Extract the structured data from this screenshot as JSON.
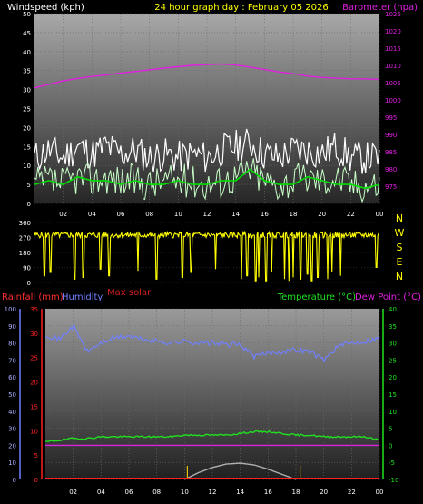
{
  "header": {
    "left_title": "Windspeed (kph)",
    "center_title": "24 hour graph day : February 05 2026",
    "right_title": "Barometer (hpa)"
  },
  "colors": {
    "gust": "#ffffff",
    "wind": "#c8ffc8",
    "wind_avg": "#00e000",
    "barometer": "#e020e0",
    "direction": "#ffff00",
    "humidity": "#7080ff",
    "temperature": "#20e020",
    "dew_point": "#e020e0",
    "solar": "#b0b0b0",
    "rain": "#ff2020",
    "max_solar": "#d02020",
    "title": "#ffff00"
  },
  "x_ticks": [
    "02",
    "04",
    "06",
    "08",
    "10",
    "12",
    "14",
    "16",
    "18",
    "20",
    "22",
    "00"
  ],
  "chart_data": [
    {
      "type": "line",
      "panel": "wind-barometer",
      "left_axis": {
        "label": "Windspeed (kph)",
        "range": [
          0,
          50
        ],
        "ticks": [
          "0",
          "5",
          "10",
          "15",
          "20",
          "25",
          "30",
          "35",
          "40",
          "45",
          "50"
        ]
      },
      "right_axis": {
        "label": "Barometer (hpa)",
        "range": [
          970,
          1025
        ],
        "ticks": [
          "975",
          "980",
          "985",
          "990",
          "995",
          "1000",
          "1005",
          "1010",
          "1015",
          "1020",
          "1025"
        ]
      },
      "x_hours": [
        0,
        1,
        2,
        3,
        4,
        5,
        6,
        7,
        8,
        9,
        10,
        11,
        12,
        13,
        14,
        15,
        16,
        17,
        18,
        19,
        20,
        21,
        22,
        23,
        24
      ],
      "series": [
        {
          "key": "gust",
          "axis": "left",
          "values": [
            12,
            14,
            12,
            15,
            13,
            15,
            13,
            14,
            12,
            13,
            12,
            13,
            12,
            14,
            15,
            16,
            13,
            12,
            14,
            14,
            13,
            15,
            12,
            12,
            12
          ]
        },
        {
          "key": "wind",
          "axis": "left",
          "values": [
            5,
            6,
            5,
            7,
            6,
            7,
            6,
            6,
            5,
            6,
            6,
            6,
            5,
            6,
            7,
            9,
            6,
            5,
            6,
            7,
            6,
            7,
            5,
            5,
            5
          ]
        },
        {
          "key": "wind_avg",
          "axis": "left",
          "values": [
            5,
            6,
            5,
            7,
            6,
            6,
            5,
            6,
            5,
            5,
            6,
            5,
            5,
            6,
            6,
            9,
            6,
            5,
            5,
            7,
            6,
            5,
            5,
            4,
            5
          ]
        },
        {
          "key": "barometer",
          "axis": "right",
          "values": [
            1003.5,
            1004.5,
            1005.5,
            1006.2,
            1006.8,
            1007.2,
            1007.8,
            1008.2,
            1008.7,
            1009.2,
            1009.6,
            1010,
            1010.2,
            1010.4,
            1010.1,
            1009.5,
            1008.8,
            1008.1,
            1007.6,
            1006.9,
            1006.5,
            1006.3,
            1006.1,
            1006.1,
            1005.9
          ]
        }
      ]
    },
    {
      "type": "line",
      "panel": "wind-direction",
      "left_axis": {
        "label": "",
        "range": [
          0,
          360
        ],
        "ticks": [
          "0",
          "90",
          "180",
          "270",
          "360"
        ]
      },
      "right_axis": {
        "label": "",
        "ticks": [
          "N",
          "W",
          "S",
          "E",
          "N"
        ]
      },
      "series": [
        {
          "key": "direction",
          "name": "",
          "baseline_deg": 285,
          "dips_hours": [
            0.7,
            1.1,
            2.8,
            3.4,
            4.6,
            5.2,
            7.2,
            8.5,
            10.3,
            10.9,
            12.6,
            14.4,
            14.8,
            15.4,
            15.6,
            16.1,
            16.5,
            17.4,
            17.7,
            18.0,
            18.5,
            19.0,
            19.3,
            19.7,
            20.4,
            20.7,
            21.3,
            23.8
          ],
          "dips_deg": [
            40,
            60,
            20,
            30,
            80,
            40,
            70,
            20,
            30,
            60,
            80,
            20,
            40,
            10,
            30,
            10,
            60,
            20,
            10,
            30,
            20,
            50,
            10,
            30,
            20,
            60,
            40,
            90
          ]
        }
      ]
    },
    {
      "type": "line",
      "panel": "temperature-humidity-rain",
      "left_axis": {
        "label": "Humidity",
        "range": [
          0,
          100
        ],
        "ticks": [
          "0",
          "10",
          "20",
          "30",
          "40",
          "50",
          "60",
          "70",
          "80",
          "90",
          "100"
        ]
      },
      "rain_axis": {
        "label": "Rainfall (mm)",
        "range": [
          0,
          35
        ],
        "ticks": [
          "0",
          "5",
          "10",
          "15",
          "20",
          "25",
          "30",
          "35"
        ]
      },
      "right_axis": {
        "label": "Temperature (°C)",
        "range": [
          -10,
          40
        ],
        "ticks": [
          "-10",
          "-5",
          "0",
          "5",
          "10",
          "15",
          "20",
          "25",
          "30",
          "35",
          "40"
        ]
      },
      "right_title2": "Dew Point (°C)",
      "max_solar_label": "Max solar",
      "x_hours": [
        0,
        1,
        2,
        3,
        4,
        5,
        6,
        7,
        8,
        9,
        10,
        11,
        12,
        13,
        14,
        15,
        16,
        17,
        18,
        19,
        20,
        21,
        22,
        23,
        24
      ],
      "series": [
        {
          "key": "humidity",
          "axis": "left",
          "values": [
            85,
            82,
            90,
            75,
            80,
            83,
            84,
            82,
            81,
            80,
            81,
            80,
            80,
            79,
            79,
            72,
            74,
            75,
            76,
            75,
            70,
            78,
            80,
            81,
            83
          ]
        },
        {
          "key": "temperature",
          "axis": "right",
          "values": [
            1,
            1.5,
            2,
            2,
            2.5,
            2.5,
            2.5,
            2.5,
            2.5,
            2.5,
            3,
            3,
            3,
            3,
            3.5,
            4,
            4,
            3.5,
            3,
            3,
            2.5,
            2.5,
            2.5,
            2.5,
            1.5
          ]
        },
        {
          "key": "dew_point",
          "axis": "right",
          "values": [
            -1,
            -1.5,
            -1.5,
            -1,
            -1,
            -1,
            -1,
            -1,
            -1,
            -1,
            -1,
            -1,
            -1,
            -1,
            -1,
            -0.5,
            -0.5,
            -0.5,
            -0.5,
            -1,
            -1,
            -1,
            -1,
            -1,
            -1
          ]
        },
        {
          "key": "solar",
          "axis": "left",
          "hours": [
            10,
            11,
            12,
            13,
            14,
            15,
            16,
            17,
            18
          ],
          "values": [
            0,
            4,
            7,
            9,
            9.5,
            8.5,
            6,
            3,
            0
          ]
        },
        {
          "key": "rain",
          "axis": "rain",
          "values": [
            0,
            0,
            0,
            0,
            0,
            0,
            0,
            0,
            0,
            0,
            0,
            0,
            0,
            0,
            0,
            0,
            0,
            0,
            0,
            0,
            0,
            0,
            0,
            0,
            0
          ]
        }
      ],
      "sun_marks_hours": [
        10.2,
        18.3
      ]
    }
  ]
}
